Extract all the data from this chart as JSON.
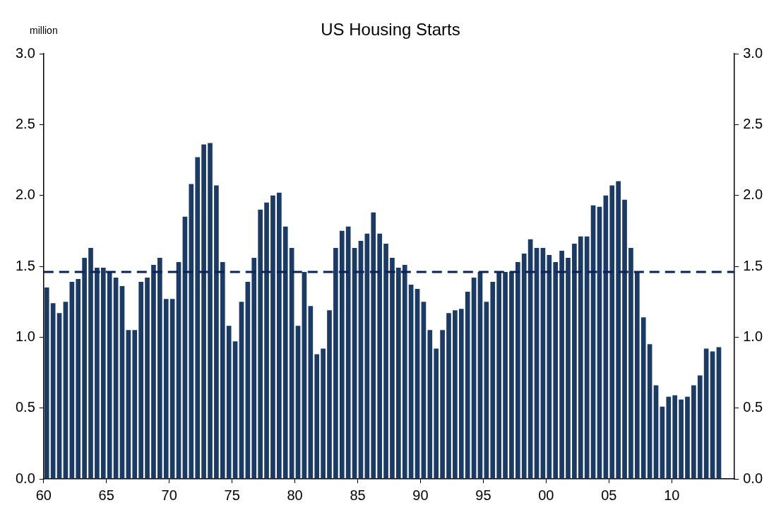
{
  "chart_data": {
    "type": "bar",
    "title": "US Housing Starts",
    "ylabel": "million",
    "x": [
      1960.25,
      1960.75,
      1961.25,
      1961.75,
      1962.25,
      1962.75,
      1963.25,
      1963.75,
      1964.25,
      1964.75,
      1965.25,
      1965.75,
      1966.25,
      1966.75,
      1967.25,
      1967.75,
      1968.25,
      1968.75,
      1969.25,
      1969.75,
      1970.25,
      1970.75,
      1971.25,
      1971.75,
      1972.25,
      1972.75,
      1973.25,
      1973.75,
      1974.25,
      1974.75,
      1975.25,
      1975.75,
      1976.25,
      1976.75,
      1977.25,
      1977.75,
      1978.25,
      1978.75,
      1979.25,
      1979.75,
      1980.25,
      1980.75,
      1981.25,
      1981.75,
      1982.25,
      1982.75,
      1983.25,
      1983.75,
      1984.25,
      1984.75,
      1985.25,
      1985.75,
      1986.25,
      1986.75,
      1987.25,
      1987.75,
      1988.25,
      1988.75,
      1989.25,
      1989.75,
      1990.25,
      1990.75,
      1991.25,
      1991.75,
      1992.25,
      1992.75,
      1993.25,
      1993.75,
      1994.25,
      1994.75,
      1995.25,
      1995.75,
      1996.25,
      1996.75,
      1997.25,
      1997.75,
      1998.25,
      1998.75,
      1999.25,
      1999.75,
      2000.25,
      2000.75,
      2001.25,
      2001.75,
      2002.25,
      2002.75,
      2003.25,
      2003.75,
      2004.25,
      2004.75,
      2005.25,
      2005.75,
      2006.25,
      2006.75,
      2007.25,
      2007.75,
      2008.25,
      2008.75,
      2009.25,
      2009.75,
      2010.25,
      2010.75,
      2011.25,
      2011.75,
      2012.25,
      2012.75,
      2013.25,
      2013.75
    ],
    "series": [
      {
        "color": "#1b3a66",
        "values": [
          1.35,
          1.24,
          1.17,
          1.25,
          1.39,
          1.41,
          1.56,
          1.63,
          1.49,
          1.49,
          1.46,
          1.42,
          1.36,
          1.05,
          1.05,
          1.39,
          1.42,
          1.51,
          1.56,
          1.27,
          1.27,
          1.53,
          1.85,
          2.08,
          2.27,
          2.36,
          2.37,
          2.07,
          1.53,
          1.08,
          0.97,
          1.25,
          1.39,
          1.56,
          1.9,
          1.95,
          2.0,
          2.02,
          1.78,
          1.63,
          1.08,
          1.46,
          1.22,
          0.88,
          0.92,
          1.19,
          1.63,
          1.75,
          1.78,
          1.63,
          1.68,
          1.73,
          1.88,
          1.73,
          1.66,
          1.56,
          1.49,
          1.51,
          1.37,
          1.34,
          1.25,
          1.05,
          0.92,
          1.05,
          1.17,
          1.19,
          1.2,
          1.32,
          1.42,
          1.46,
          1.25,
          1.39,
          1.46,
          1.46,
          1.46,
          1.53,
          1.59,
          1.69,
          1.63,
          1.63,
          1.58,
          1.53,
          1.61,
          1.56,
          1.66,
          1.71,
          1.71,
          1.93,
          1.92,
          2.0,
          2.07,
          2.1,
          1.97,
          1.63,
          1.46,
          1.14,
          0.95,
          0.66,
          0.51,
          0.58,
          0.59,
          0.56,
          0.58,
          0.66,
          0.73,
          0.92,
          0.9,
          0.93
        ]
      }
    ],
    "xlim": [
      1960,
      2015
    ],
    "xticks": [
      {
        "value": 1960,
        "label": "60"
      },
      {
        "value": 1965,
        "label": "65"
      },
      {
        "value": 1970,
        "label": "70"
      },
      {
        "value": 1975,
        "label": "75"
      },
      {
        "value": 1980,
        "label": "80"
      },
      {
        "value": 1985,
        "label": "85"
      },
      {
        "value": 1990,
        "label": "90"
      },
      {
        "value": 1995,
        "label": "95"
      },
      {
        "value": 2000,
        "label": "00"
      },
      {
        "value": 2005,
        "label": "05"
      },
      {
        "value": 2010,
        "label": "10"
      }
    ],
    "ylim": [
      0,
      3
    ],
    "yticks": [
      {
        "value": 0,
        "label": "0.0"
      },
      {
        "value": 0.5,
        "label": "0.5"
      },
      {
        "value": 1,
        "label": "1.0"
      },
      {
        "value": 1.5,
        "label": "1.5"
      },
      {
        "value": 2,
        "label": "2.0"
      },
      {
        "value": 2.5,
        "label": "2.5"
      },
      {
        "value": 3,
        "label": "3.0"
      }
    ],
    "y2lim": [
      0,
      3
    ],
    "y2ticks": [
      {
        "value": 0,
        "label": "0.0"
      },
      {
        "value": 0.5,
        "label": "0.5"
      },
      {
        "value": 1,
        "label": "1.0"
      },
      {
        "value": 1.5,
        "label": "1.5"
      },
      {
        "value": 2,
        "label": "2.0"
      },
      {
        "value": 2.5,
        "label": "2.5"
      },
      {
        "value": 3,
        "label": "3.0"
      }
    ],
    "ref_lines": [
      {
        "axis": "y",
        "value": 1.46,
        "color": "#0a2258",
        "line_style": "dashed"
      }
    ],
    "grid": false,
    "legend": false
  }
}
